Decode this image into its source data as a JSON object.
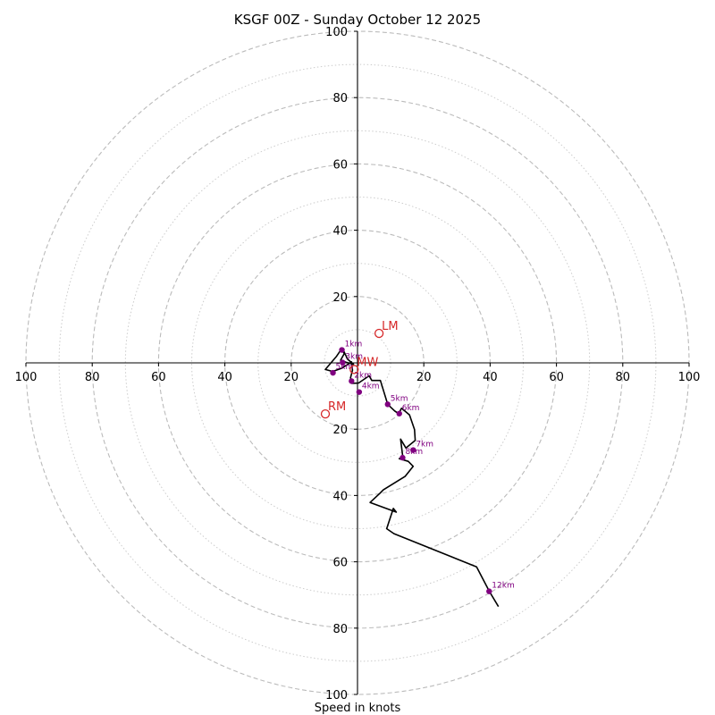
{
  "chart_data": {
    "type": "hodograph",
    "title": "KSGF 00Z - Sunday October 12 2025",
    "xlabel": "Speed in knots",
    "units": "knots",
    "max_speed": 100,
    "major_rings": [
      20,
      40,
      60,
      80,
      100
    ],
    "minor_rings": [
      10,
      30,
      50,
      70,
      90
    ],
    "x_ticks": [
      -100,
      -80,
      -60,
      -40,
      -20,
      20,
      40,
      60,
      80,
      100
    ],
    "x_tick_labels": [
      "100",
      "80",
      "60",
      "40",
      "20",
      "20",
      "40",
      "60",
      "80",
      "100"
    ],
    "y_ticks": [
      100,
      80,
      60,
      40,
      20,
      -20,
      -40,
      -60,
      -80,
      -100
    ],
    "y_tick_labels": [
      "100",
      "80",
      "60",
      "40",
      "20",
      "20",
      "40",
      "60",
      "80",
      "100"
    ],
    "colors": {
      "trace": "#000000",
      "height_marker": "#800080",
      "motion": "#d62728",
      "ring": "#bbbbbb"
    },
    "trace": [
      [
        -4.7,
        3.9
      ],
      [
        -4.0,
        2.8
      ],
      [
        -5.1,
        0.8
      ],
      [
        -3.5,
        0.2
      ],
      [
        -1.2,
        -0.4
      ],
      [
        -3.0,
        1.1
      ],
      [
        -4.6,
        4.5
      ],
      [
        -6.3,
        2.0
      ],
      [
        -9.7,
        -2.0
      ],
      [
        -7.5,
        -2.6
      ],
      [
        -4.7,
        -1.6
      ],
      [
        -1.8,
        0.3
      ],
      [
        -1.5,
        -2.2
      ],
      [
        -2.1,
        -4.5
      ],
      [
        -1.7,
        -6.2
      ],
      [
        0.3,
        -6.1
      ],
      [
        3.5,
        -3.9
      ],
      [
        4.3,
        -5.3
      ],
      [
        6.9,
        -5.3
      ],
      [
        9.1,
        -12.5
      ],
      [
        11.2,
        -14.5
      ],
      [
        12.4,
        -15.3
      ],
      [
        13.3,
        -13.7
      ],
      [
        15.7,
        -15.7
      ],
      [
        17.2,
        -20.1
      ],
      [
        17.4,
        -23.4
      ],
      [
        14.6,
        -25.7
      ],
      [
        13.0,
        -23.0
      ],
      [
        13.5,
        -27.1
      ],
      [
        13.7,
        -28.6
      ],
      [
        12.6,
        -28.9
      ],
      [
        15.3,
        -29.7
      ],
      [
        16.8,
        -31.2
      ],
      [
        14.4,
        -34.2
      ],
      [
        7.8,
        -38.3
      ],
      [
        6.8,
        -39.3
      ],
      [
        3.8,
        -42.1
      ],
      [
        11.7,
        -45.0
      ],
      [
        10.8,
        -43.9
      ],
      [
        9.0,
        -49.4
      ],
      [
        8.8,
        -50.0
      ],
      [
        11.0,
        -51.5
      ],
      [
        35.9,
        -61.5
      ],
      [
        39.8,
        -69.0
      ],
      [
        42.5,
        -73.5
      ]
    ],
    "height_markers": [
      {
        "label": "1km",
        "u": -4.7,
        "v": 3.9
      },
      {
        "label": "3km",
        "u": -4.5,
        "v": 0.1
      },
      {
        "label": "5km",
        "u": 9.1,
        "v": -12.5
      },
      {
        "label": "6km",
        "u": 12.6,
        "v": -15.3
      },
      {
        "label": "7km",
        "u": 16.8,
        "v": -26.3
      },
      {
        "label": "8km",
        "u": 13.6,
        "v": -28.6
      },
      {
        "label": "12km",
        "u": 39.7,
        "v": -68.9
      },
      {
        "label": "5km",
        "u": -7.4,
        "v": -3.0
      },
      {
        "label": "2km",
        "u": -1.8,
        "v": -5.5
      },
      {
        "label": "4km",
        "u": 0.5,
        "v": -8.8
      }
    ],
    "storm_motions": [
      {
        "label": "LM",
        "u": 6.5,
        "v": 8.9
      },
      {
        "label": "RM",
        "u": -9.7,
        "v": -15.4
      },
      {
        "label": "MW",
        "u": -1.0,
        "v": -2.0
      }
    ]
  }
}
